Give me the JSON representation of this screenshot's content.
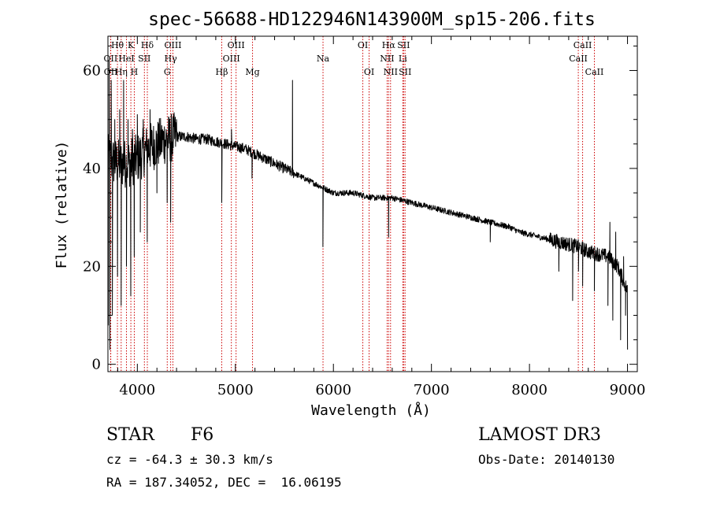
{
  "chart_data": {
    "type": "line",
    "title": "spec-56688-HD122946N143900M_sp15-206.fits",
    "xlabel": "Wavelength (Å)",
    "ylabel": "Flux (relative)",
    "xlim": [
      3700,
      9100
    ],
    "ylim": [
      -1.5,
      67
    ],
    "xticks": [
      4000,
      5000,
      6000,
      7000,
      8000,
      9000
    ],
    "xtick_labels": [
      "4000",
      "5000",
      "6000",
      "7000",
      "8000",
      "9000"
    ],
    "yticks": [
      0,
      20,
      40,
      60
    ],
    "ytick_labels": [
      "0",
      "20",
      "40",
      "60"
    ],
    "x_minor_step": 200,
    "y_minor_step": 5,
    "continuum": {
      "x": [
        3700,
        3800,
        3900,
        4000,
        4100,
        4200,
        4300,
        4400,
        4500,
        4600,
        4700,
        4800,
        4900,
        5000,
        5100,
        5200,
        5300,
        5400,
        5500,
        5600,
        5700,
        5800,
        5900,
        6000,
        6100,
        6200,
        6300,
        6400,
        6500,
        6600,
        6700,
        6800,
        6900,
        7000,
        7100,
        7200,
        7300,
        7400,
        7500,
        7600,
        7700,
        7800,
        7900,
        8000,
        8100,
        8200,
        8300,
        8400,
        8500,
        8600,
        8700,
        8800,
        8900,
        9000
      ],
      "y": [
        42,
        41,
        41,
        42,
        44,
        45,
        46,
        46.5,
        46.5,
        46,
        46,
        45.5,
        45,
        44.5,
        44,
        43,
        42,
        41,
        40,
        39,
        38,
        37,
        36,
        35,
        35,
        35,
        34.5,
        34,
        34,
        34,
        33.5,
        33,
        32.5,
        32,
        31.5,
        31,
        30.5,
        30,
        29.5,
        29,
        28.5,
        28,
        27,
        26.5,
        26,
        25.5,
        25,
        24.5,
        24,
        23,
        22.5,
        22,
        20,
        15
      ]
    },
    "features": [
      {
        "x": 3705,
        "y": 8
      },
      {
        "x": 3712,
        "y": 62
      },
      {
        "x": 3720,
        "y": 3
      },
      {
        "x": 3733,
        "y": 58
      },
      {
        "x": 3745,
        "y": 10
      },
      {
        "x": 3770,
        "y": 50
      },
      {
        "x": 3798,
        "y": 18
      },
      {
        "x": 3820,
        "y": 52
      },
      {
        "x": 3835,
        "y": 12
      },
      {
        "x": 3860,
        "y": 58
      },
      {
        "x": 3889,
        "y": 20
      },
      {
        "x": 3905,
        "y": 50
      },
      {
        "x": 3933,
        "y": 14
      },
      {
        "x": 3950,
        "y": 48
      },
      {
        "x": 3968,
        "y": 22
      },
      {
        "x": 4000,
        "y": 51
      },
      {
        "x": 4030,
        "y": 27
      },
      {
        "x": 4060,
        "y": 50
      },
      {
        "x": 4101,
        "y": 25
      },
      {
        "x": 4130,
        "y": 52
      },
      {
        "x": 4200,
        "y": 35
      },
      {
        "x": 4250,
        "y": 48
      },
      {
        "x": 4304,
        "y": 33
      },
      {
        "x": 4340,
        "y": 29
      },
      {
        "x": 4400,
        "y": 50
      },
      {
        "x": 4861,
        "y": 33
      },
      {
        "x": 4960,
        "y": 48
      },
      {
        "x": 5170,
        "y": 38
      },
      {
        "x": 5583,
        "y": 58
      },
      {
        "x": 5893,
        "y": 24
      },
      {
        "x": 6563,
        "y": 26
      },
      {
        "x": 7600,
        "y": 25
      },
      {
        "x": 8300,
        "y": 19
      },
      {
        "x": 8440,
        "y": 13
      },
      {
        "x": 8500,
        "y": 19
      },
      {
        "x": 8542,
        "y": 16
      },
      {
        "x": 8662,
        "y": 15
      },
      {
        "x": 8800,
        "y": 12
      },
      {
        "x": 8820,
        "y": 29
      },
      {
        "x": 8850,
        "y": 9
      },
      {
        "x": 8880,
        "y": 27
      },
      {
        "x": 8930,
        "y": 5
      },
      {
        "x": 8960,
        "y": 22
      },
      {
        "x": 8980,
        "y": 10
      },
      {
        "x": 9000,
        "y": 3
      }
    ],
    "lines": [
      {
        "label": "Hθ",
        "x": 3797,
        "row": 0
      },
      {
        "label": "OII",
        "x": 3727,
        "row": 1
      },
      {
        "label": "OII",
        "x": 3729,
        "row": 2
      },
      {
        "label": "K",
        "x": 3934,
        "row": 0
      },
      {
        "label": "HeI",
        "x": 3889,
        "row": 1
      },
      {
        "label": "Hη",
        "x": 3835,
        "row": 2
      },
      {
        "label": "Hδ",
        "x": 4102,
        "row": 0
      },
      {
        "label": "SII",
        "x": 4072,
        "row": 1
      },
      {
        "label": "H",
        "x": 3969,
        "row": 2
      },
      {
        "label": "OIII",
        "x": 4363,
        "row": 0
      },
      {
        "label": "Hγ",
        "x": 4340,
        "row": 1
      },
      {
        "label": "G",
        "x": 4305,
        "row": 2
      },
      {
        "label": "OIII",
        "x": 5007,
        "row": 0
      },
      {
        "label": "OIII",
        "x": 4959,
        "row": 1
      },
      {
        "label": "Hβ",
        "x": 4861,
        "row": 2
      },
      {
        "label": "Mg",
        "x": 5175,
        "row": 2
      },
      {
        "label": "Na",
        "x": 5894,
        "row": 1
      },
      {
        "label": "OI",
        "x": 6300,
        "row": 0
      },
      {
        "label": "OI",
        "x": 6364,
        "row": 2
      },
      {
        "label": "Hα",
        "x": 6563,
        "row": 0
      },
      {
        "label": "SII",
        "x": 6716,
        "row": 0
      },
      {
        "label": "NII",
        "x": 6548,
        "row": 1
      },
      {
        "label": "Li",
        "x": 6708,
        "row": 1
      },
      {
        "label": "NII",
        "x": 6583,
        "row": 2
      },
      {
        "label": "SII",
        "x": 6731,
        "row": 2
      },
      {
        "label": "CaII",
        "x": 8542,
        "row": 0
      },
      {
        "label": "CaII",
        "x": 8498,
        "row": 1
      },
      {
        "label": "CaII",
        "x": 8662,
        "row": 2
      }
    ]
  },
  "info": {
    "class_label": "STAR",
    "subclass": "F6",
    "survey": "LAMOST DR3",
    "redshift": "cz = -64.3 ± 30.3 km/s",
    "obs_date": "Obs-Date: 20140130",
    "coords": "RA = 187.34052, DEC =  16.06195"
  }
}
